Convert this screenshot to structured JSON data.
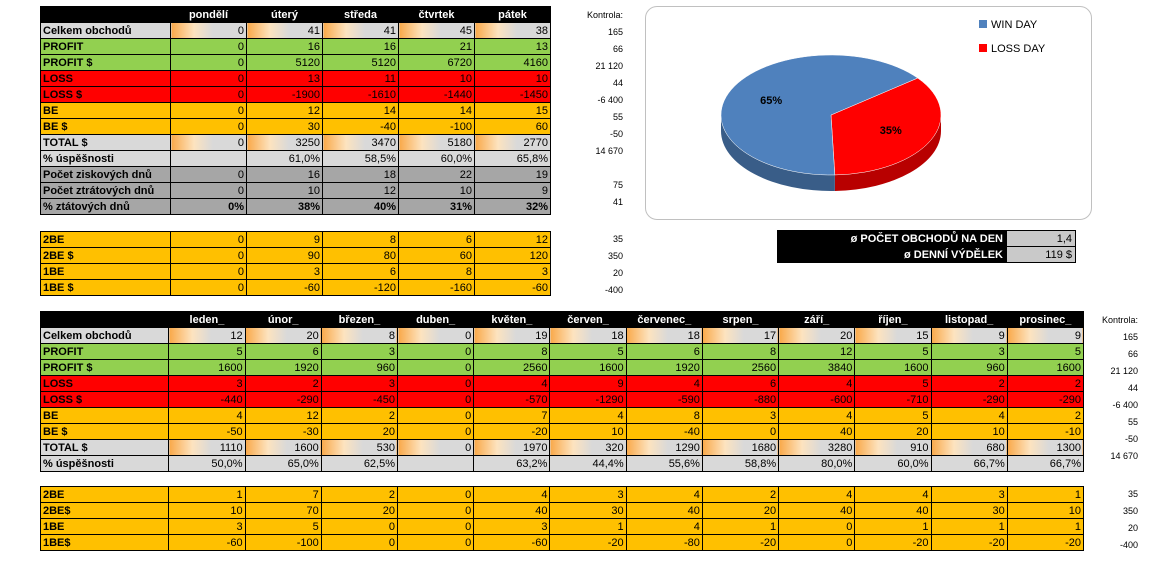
{
  "colors": {
    "header": "#000000",
    "gray": "#d9d9d9",
    "green": "#92d050",
    "red": "#ff0000",
    "orange": "#ffc000",
    "darkgray": "#a6a6a6",
    "bar": "#f9a94a",
    "win": "#4f81bd",
    "loss": "#ff0000"
  },
  "day_table": {
    "columns": [
      "pondělí",
      "úterý",
      "středa",
      "čtvrtek",
      "pátek"
    ],
    "rows": [
      {
        "label": "Celkem obchodů",
        "color": "#d9d9d9",
        "bar": true,
        "values": [
          "0",
          "41",
          "41",
          "45",
          "38"
        ],
        "control": "165"
      },
      {
        "label": "PROFIT",
        "color": "#92d050",
        "values": [
          "0",
          "16",
          "16",
          "21",
          "13"
        ],
        "control": "66"
      },
      {
        "label": "PROFIT $",
        "color": "#92d050",
        "values": [
          "0",
          "5120",
          "5120",
          "6720",
          "4160"
        ],
        "control": "21 120"
      },
      {
        "label": "LOSS",
        "color": "#ff0000",
        "values": [
          "0",
          "13",
          "11",
          "10",
          "10"
        ],
        "control": "44"
      },
      {
        "label": "LOSS $",
        "color": "#ff0000",
        "values": [
          "0",
          "-1900",
          "-1610",
          "-1440",
          "-1450"
        ],
        "control": "-6 400"
      },
      {
        "label": "BE",
        "color": "#ffc000",
        "values": [
          "0",
          "12",
          "14",
          "14",
          "15"
        ],
        "control": "55"
      },
      {
        "label": "BE $",
        "color": "#ffc000",
        "values": [
          "0",
          "30",
          "-40",
          "-100",
          "60"
        ],
        "control": "-50"
      },
      {
        "label": "TOTAL $",
        "color": "#d9d9d9",
        "bar": true,
        "values": [
          "0",
          "3250",
          "3470",
          "5180",
          "2770"
        ],
        "control": "14 670"
      },
      {
        "label": "% úspěšnosti",
        "color": "#d9d9d9",
        "values": [
          "",
          "61,0%",
          "58,5%",
          "60,0%",
          "65,8%"
        ],
        "control": ""
      },
      {
        "label": "Počet ziskových dnů",
        "color": "#a6a6a6",
        "values": [
          "0",
          "16",
          "18",
          "22",
          "19"
        ],
        "control": "75"
      },
      {
        "label": "Počet ztrátových dnů",
        "color": "#a6a6a6",
        "values": [
          "0",
          "10",
          "12",
          "10",
          "9"
        ],
        "control": "41"
      },
      {
        "label": "% ztátových dnů",
        "color": "#a6a6a6",
        "bold": true,
        "values": [
          "0%",
          "38%",
          "40%",
          "31%",
          "32%"
        ],
        "control": ""
      }
    ],
    "control_label": "Kontrola:"
  },
  "day_be_table": {
    "rows": [
      {
        "label": "2BE",
        "values": [
          "0",
          "9",
          "8",
          "6",
          "12"
        ],
        "control": "35"
      },
      {
        "label": "2BE $",
        "values": [
          "0",
          "90",
          "80",
          "60",
          "120"
        ],
        "control": "350"
      },
      {
        "label": "1BE",
        "values": [
          "0",
          "3",
          "6",
          "8",
          "3"
        ],
        "control": "20"
      },
      {
        "label": "1BE $",
        "values": [
          "0",
          "-60",
          "-120",
          "-160",
          "-60"
        ],
        "control": "-400"
      }
    ]
  },
  "chart_data": {
    "type": "pie",
    "categories": [
      "WIN DAY",
      "LOSS DAY"
    ],
    "values": [
      65,
      35
    ],
    "labels": [
      "65%",
      "35%"
    ],
    "colors": [
      "#4f81bd",
      "#ff0000"
    ],
    "legend": "top-right"
  },
  "averages": [
    {
      "label": "ø POČET OBCHODŮ NA DEN",
      "value": "1,4"
    },
    {
      "label": "ø DENNÍ VÝDĚLEK",
      "value": "119 $"
    }
  ],
  "month_table": {
    "columns": [
      "leden_",
      "únor_",
      "březen_",
      "duben_",
      "květen_",
      "červen_",
      "červenec_",
      "srpen_",
      "září_",
      "říjen_",
      "listopad_",
      "prosinec_"
    ],
    "control_label": "Kontrola:",
    "rows": [
      {
        "label": "Celkem obchodů",
        "color": "#d9d9d9",
        "bar": true,
        "values": [
          "12",
          "20",
          "8",
          "0",
          "19",
          "18",
          "18",
          "17",
          "20",
          "15",
          "9",
          "9"
        ],
        "control": "165"
      },
      {
        "label": "PROFIT",
        "color": "#92d050",
        "values": [
          "5",
          "6",
          "3",
          "0",
          "8",
          "5",
          "6",
          "8",
          "12",
          "5",
          "3",
          "5"
        ],
        "control": "66"
      },
      {
        "label": "PROFIT $",
        "color": "#92d050",
        "values": [
          "1600",
          "1920",
          "960",
          "0",
          "2560",
          "1600",
          "1920",
          "2560",
          "3840",
          "1600",
          "960",
          "1600"
        ],
        "control": "21 120"
      },
      {
        "label": "LOSS",
        "color": "#ff0000",
        "values": [
          "3",
          "2",
          "3",
          "0",
          "4",
          "9",
          "4",
          "6",
          "4",
          "5",
          "2",
          "2"
        ],
        "control": "44"
      },
      {
        "label": "LOSS $",
        "color": "#ff0000",
        "values": [
          "-440",
          "-290",
          "-450",
          "0",
          "-570",
          "-1290",
          "-590",
          "-880",
          "-600",
          "-710",
          "-290",
          "-290"
        ],
        "control": "-6 400"
      },
      {
        "label": "BE",
        "color": "#ffc000",
        "values": [
          "4",
          "12",
          "2",
          "0",
          "7",
          "4",
          "8",
          "3",
          "4",
          "5",
          "4",
          "2"
        ],
        "control": "55"
      },
      {
        "label": "BE $",
        "color": "#ffc000",
        "values": [
          "-50",
          "-30",
          "20",
          "0",
          "-20",
          "10",
          "-40",
          "0",
          "40",
          "20",
          "10",
          "-10"
        ],
        "control": "-50"
      },
      {
        "label": "TOTAL $",
        "color": "#d9d9d9",
        "bar": true,
        "values": [
          "1110",
          "1600",
          "530",
          "0",
          "1970",
          "320",
          "1290",
          "1680",
          "3280",
          "910",
          "680",
          "1300"
        ],
        "control": "14 670"
      },
      {
        "label": "% úspěšnosti",
        "color": "#d9d9d9",
        "values": [
          "50,0%",
          "65,0%",
          "62,5%",
          "",
          "63,2%",
          "44,4%",
          "55,6%",
          "58,8%",
          "80,0%",
          "60,0%",
          "66,7%",
          "66,7%"
        ],
        "control": ""
      }
    ]
  },
  "month_be_table": {
    "rows": [
      {
        "label": "2BE",
        "values": [
          "1",
          "7",
          "2",
          "0",
          "4",
          "3",
          "4",
          "2",
          "4",
          "4",
          "3",
          "1"
        ],
        "control": "35"
      },
      {
        "label": "2BE$",
        "values": [
          "10",
          "70",
          "20",
          "0",
          "40",
          "30",
          "40",
          "20",
          "40",
          "40",
          "30",
          "10"
        ],
        "control": "350"
      },
      {
        "label": "1BE",
        "values": [
          "3",
          "5",
          "0",
          "0",
          "3",
          "1",
          "4",
          "1",
          "0",
          "1",
          "1",
          "1"
        ],
        "control": "20"
      },
      {
        "label": "1BE$",
        "values": [
          "-60",
          "-100",
          "0",
          "0",
          "-60",
          "-20",
          "-80",
          "-20",
          "0",
          "-20",
          "-20",
          "-20"
        ],
        "control": "-400"
      }
    ]
  }
}
